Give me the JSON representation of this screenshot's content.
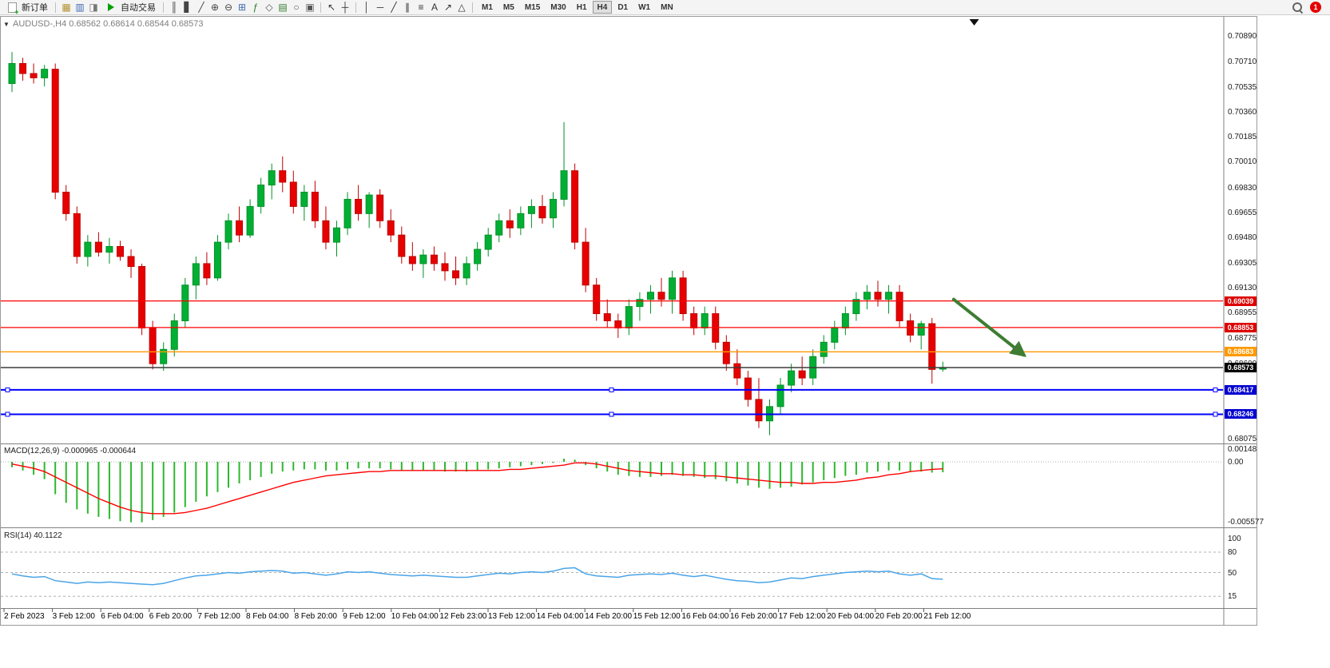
{
  "toolbar": {
    "new_order_label": "新订单",
    "auto_trading_label": "自动交易",
    "notification_count": "1",
    "timeframes": [
      "M1",
      "M5",
      "M15",
      "M30",
      "H1",
      "H4",
      "D1",
      "W1",
      "MN"
    ],
    "active_timeframe": "H4",
    "icons_a": [
      {
        "name": "profiles-icon",
        "glyph": "▦",
        "color": "#b3902d"
      },
      {
        "name": "market-watch-icon",
        "glyph": "▥",
        "color": "#3f69b3"
      },
      {
        "name": "navigator-icon",
        "glyph": "◨",
        "color": "#777777"
      }
    ],
    "icons_b": [
      {
        "name": "bar-chart-icon",
        "glyph": "║",
        "color": "#444444"
      },
      {
        "name": "candlestick-chart-icon",
        "glyph": "▋",
        "color": "#444444"
      },
      {
        "name": "line-chart-icon",
        "glyph": "╱",
        "color": "#444444"
      },
      {
        "name": "zoom-in-icon",
        "glyph": "⊕",
        "color": "#444444"
      },
      {
        "name": "zoom-out-icon",
        "glyph": "⊖",
        "color": "#444444"
      },
      {
        "name": "tile-windows-icon",
        "glyph": "⊞",
        "color": "#3f69b3"
      },
      {
        "name": "indicators-icon",
        "glyph": "ƒ",
        "color": "#2e7d2e"
      },
      {
        "name": "objects-list-icon",
        "glyph": "◇",
        "color": "#555555"
      },
      {
        "name": "new-chart-icon",
        "glyph": "▤",
        "color": "#2e7d2e"
      },
      {
        "name": "period-clock-icon",
        "glyph": "○",
        "color": "#555555"
      },
      {
        "name": "screenshot-icon",
        "glyph": "▣",
        "color": "#555555"
      }
    ],
    "icons_c": [
      {
        "name": "cursor-icon",
        "glyph": "↖",
        "color": "#333333"
      },
      {
        "name": "crosshair-icon",
        "glyph": "┼",
        "color": "#333333"
      }
    ],
    "icons_d": [
      {
        "name": "vertical-line-icon",
        "glyph": "│",
        "color": "#333333"
      },
      {
        "name": "horizontal-line-icon",
        "glyph": "─",
        "color": "#333333"
      },
      {
        "name": "trendline-icon",
        "glyph": "╱",
        "color": "#333333"
      },
      {
        "name": "equidistant-channel-icon",
        "glyph": "∥",
        "color": "#333333"
      },
      {
        "name": "fibonacci-icon",
        "glyph": "≡",
        "color": "#333333"
      },
      {
        "name": "text-icon",
        "glyph": "A",
        "color": "#333333"
      },
      {
        "name": "arrow-objects-icon",
        "glyph": "↗",
        "color": "#333333"
      },
      {
        "name": "shapes-icon",
        "glyph": "△",
        "color": "#333333"
      }
    ]
  },
  "chart": {
    "collapse_glyph": "▼",
    "header": "AUDUSD-,H4  0.68562 0.68614 0.68544 0.68573",
    "symbol": "AUDUSD-",
    "timeframe": "H4",
    "open": "0.68562",
    "high": "0.68614",
    "low": "0.68544",
    "close": "0.68573"
  },
  "price_axis": {
    "ticks": [
      "0.70890",
      "0.70710",
      "0.70535",
      "0.70360",
      "0.70185",
      "0.70010",
      "0.69830",
      "0.69655",
      "0.69480",
      "0.69305",
      "0.69130",
      "0.68955",
      "0.68775",
      "0.68600",
      "0.68075"
    ]
  },
  "levels": [
    {
      "price": 0.69039,
      "display": "0.69039",
      "line_color": "#ff0000",
      "badge_color": "#dd0000",
      "width": 1.3,
      "handles": false
    },
    {
      "price": 0.68853,
      "display": "0.68853",
      "line_color": "#ff0000",
      "badge_color": "#dd0000",
      "width": 1.3,
      "handles": false
    },
    {
      "price": 0.68683,
      "display": "0.68683",
      "line_color": "#ff9900",
      "badge_color": "#ff9900",
      "width": 1.3,
      "handles": false
    },
    {
      "price": 0.68573,
      "display": "0.68573",
      "line_color": "#3c3c3c",
      "badge_color": "#000000",
      "width": 1.4,
      "handles": false
    },
    {
      "price": 0.68417,
      "display": "0.68417",
      "line_color": "#0000ff",
      "badge_color": "#0000d0",
      "width": 2,
      "handles": true
    },
    {
      "price": 0.68246,
      "display": "0.68246",
      "line_color": "#0000ff",
      "badge_color": "#0000d0",
      "width": 2,
      "handles": true
    }
  ],
  "annotation_arrow": {
    "color": "#3e7d33",
    "from_bar": 87,
    "from_price": 0.6905,
    "to_bar": 93.5,
    "to_price": 0.6866,
    "stroke_width": 4
  },
  "top_marker": {
    "bar": 88.9,
    "color": "#111111"
  },
  "indicators": {
    "macd": {
      "label": "MACD(12,26,9) -0.000965 -0.000644",
      "axis_labels": [
        "0.00148",
        "0.00",
        "-0.005577"
      ]
    },
    "rsi": {
      "label": "RSI(14) 40.1122",
      "axis_labels": [
        "100",
        "80",
        "50",
        "15"
      ]
    }
  },
  "chart_data": {
    "type": "candlestick",
    "symbol": "AUDUSD",
    "timeframe": "H4",
    "ylim": [
      0.68075,
      0.7089
    ],
    "colors": {
      "up": "#00af33",
      "up_stroke": "#009127",
      "down": "#e60000",
      "down_stroke": "#c00000",
      "macd_bar": "#2db82d",
      "macd_signal": "#ff0000",
      "rsi": "#4aa4e8"
    },
    "x_labels": [
      "2 Feb 2023",
      "3 Feb 12:00",
      "6 Feb 04:00",
      "6 Feb 20:00",
      "7 Feb 12:00",
      "8 Feb 04:00",
      "8 Feb 20:00",
      "9 Feb 12:00",
      "10 Feb 04:00",
      "12 Feb 23:00",
      "13 Feb 12:00",
      "14 Feb 04:00",
      "14 Feb 20:00",
      "15 Feb 12:00",
      "16 Feb 04:00",
      "16 Feb 20:00",
      "17 Feb 12:00",
      "20 Feb 04:00",
      "20 Feb 20:00",
      "21 Feb 12:00"
    ],
    "ohlc": [
      [
        0.7056,
        0.7078,
        0.705,
        0.707
      ],
      [
        0.707,
        0.7074,
        0.7058,
        0.7063
      ],
      [
        0.7063,
        0.707,
        0.7056,
        0.706
      ],
      [
        0.706,
        0.7069,
        0.7054,
        0.7066
      ],
      [
        0.7066,
        0.707,
        0.6975,
        0.698
      ],
      [
        0.698,
        0.6985,
        0.696,
        0.6965
      ],
      [
        0.6965,
        0.697,
        0.693,
        0.6935
      ],
      [
        0.6935,
        0.695,
        0.6928,
        0.6945
      ],
      [
        0.6945,
        0.6952,
        0.6935,
        0.6938
      ],
      [
        0.6938,
        0.6948,
        0.693,
        0.6942
      ],
      [
        0.6942,
        0.6946,
        0.6932,
        0.6935
      ],
      [
        0.6935,
        0.694,
        0.692,
        0.6928
      ],
      [
        0.6928,
        0.693,
        0.688,
        0.6885
      ],
      [
        0.6885,
        0.689,
        0.6856,
        0.686
      ],
      [
        0.686,
        0.6875,
        0.6855,
        0.687
      ],
      [
        0.687,
        0.6895,
        0.6865,
        0.689
      ],
      [
        0.689,
        0.692,
        0.6885,
        0.6915
      ],
      [
        0.6915,
        0.6935,
        0.6905,
        0.693
      ],
      [
        0.693,
        0.6938,
        0.6915,
        0.692
      ],
      [
        0.692,
        0.695,
        0.6918,
        0.6945
      ],
      [
        0.6945,
        0.6965,
        0.694,
        0.696
      ],
      [
        0.696,
        0.697,
        0.6945,
        0.695
      ],
      [
        0.695,
        0.6975,
        0.6948,
        0.697
      ],
      [
        0.697,
        0.699,
        0.6965,
        0.6985
      ],
      [
        0.6985,
        0.7,
        0.6975,
        0.6995
      ],
      [
        0.6995,
        0.7005,
        0.698,
        0.6987
      ],
      [
        0.6987,
        0.6995,
        0.6965,
        0.697
      ],
      [
        0.697,
        0.6985,
        0.696,
        0.698
      ],
      [
        0.698,
        0.6988,
        0.6955,
        0.696
      ],
      [
        0.696,
        0.697,
        0.694,
        0.6945
      ],
      [
        0.6945,
        0.696,
        0.6935,
        0.6955
      ],
      [
        0.6955,
        0.698,
        0.695,
        0.6975
      ],
      [
        0.6975,
        0.6985,
        0.696,
        0.6965
      ],
      [
        0.6965,
        0.698,
        0.6955,
        0.6978
      ],
      [
        0.6978,
        0.6982,
        0.6955,
        0.696
      ],
      [
        0.696,
        0.6968,
        0.6945,
        0.695
      ],
      [
        0.695,
        0.6956,
        0.693,
        0.6935
      ],
      [
        0.6935,
        0.6945,
        0.6925,
        0.693
      ],
      [
        0.693,
        0.694,
        0.692,
        0.6936
      ],
      [
        0.6936,
        0.6942,
        0.6925,
        0.693
      ],
      [
        0.693,
        0.6938,
        0.6918,
        0.6925
      ],
      [
        0.6925,
        0.6935,
        0.6915,
        0.692
      ],
      [
        0.692,
        0.6935,
        0.6915,
        0.693
      ],
      [
        0.693,
        0.6945,
        0.6925,
        0.694
      ],
      [
        0.694,
        0.6955,
        0.6935,
        0.695
      ],
      [
        0.695,
        0.6965,
        0.6945,
        0.696
      ],
      [
        0.696,
        0.6968,
        0.6948,
        0.6955
      ],
      [
        0.6955,
        0.697,
        0.695,
        0.6965
      ],
      [
        0.6965,
        0.6975,
        0.6955,
        0.697
      ],
      [
        0.697,
        0.6978,
        0.6958,
        0.6962
      ],
      [
        0.6962,
        0.698,
        0.6955,
        0.6975
      ],
      [
        0.6975,
        0.7029,
        0.697,
        0.6995
      ],
      [
        0.6995,
        0.7,
        0.694,
        0.6945
      ],
      [
        0.6945,
        0.6955,
        0.691,
        0.6915
      ],
      [
        0.6915,
        0.692,
        0.689,
        0.6895
      ],
      [
        0.6895,
        0.6905,
        0.6885,
        0.689
      ],
      [
        0.689,
        0.6895,
        0.6878,
        0.6885
      ],
      [
        0.6885,
        0.6905,
        0.688,
        0.69
      ],
      [
        0.69,
        0.691,
        0.689,
        0.6905
      ],
      [
        0.6905,
        0.6915,
        0.6895,
        0.691
      ],
      [
        0.691,
        0.692,
        0.69,
        0.6905
      ],
      [
        0.6905,
        0.6925,
        0.6895,
        0.692
      ],
      [
        0.692,
        0.6925,
        0.689,
        0.6895
      ],
      [
        0.6895,
        0.69,
        0.688,
        0.6885
      ],
      [
        0.6885,
        0.69,
        0.688,
        0.6895
      ],
      [
        0.6895,
        0.69,
        0.687,
        0.6875
      ],
      [
        0.6875,
        0.688,
        0.6855,
        0.686
      ],
      [
        0.686,
        0.687,
        0.6845,
        0.685
      ],
      [
        0.685,
        0.6855,
        0.683,
        0.6835
      ],
      [
        0.6835,
        0.685,
        0.6815,
        0.682
      ],
      [
        0.682,
        0.6835,
        0.681,
        0.683
      ],
      [
        0.683,
        0.685,
        0.6825,
        0.6845
      ],
      [
        0.6845,
        0.686,
        0.684,
        0.6855
      ],
      [
        0.6855,
        0.6865,
        0.6845,
        0.685
      ],
      [
        0.685,
        0.687,
        0.6845,
        0.6865
      ],
      [
        0.6865,
        0.688,
        0.686,
        0.6875
      ],
      [
        0.6875,
        0.689,
        0.687,
        0.6885
      ],
      [
        0.6885,
        0.69,
        0.688,
        0.6895
      ],
      [
        0.6895,
        0.691,
        0.689,
        0.6905
      ],
      [
        0.6905,
        0.6915,
        0.6898,
        0.691
      ],
      [
        0.691,
        0.6918,
        0.69,
        0.6905
      ],
      [
        0.6905,
        0.6915,
        0.6895,
        0.691
      ],
      [
        0.691,
        0.6915,
        0.6885,
        0.689
      ],
      [
        0.689,
        0.6895,
        0.6875,
        0.688
      ],
      [
        0.688,
        0.689,
        0.687,
        0.6888
      ],
      [
        0.6888,
        0.6892,
        0.6846,
        0.6856
      ],
      [
        0.68562,
        0.68614,
        0.68544,
        0.68573
      ]
    ],
    "macd": {
      "ylim": [
        -0.005577,
        0.00148
      ],
      "histogram": [
        -0.0005,
        -0.0008,
        -0.0012,
        -0.0016,
        -0.003,
        -0.0038,
        -0.0044,
        -0.0048,
        -0.0051,
        -0.0053,
        -0.0055,
        -0.0056,
        -0.0056,
        -0.0054,
        -0.0051,
        -0.0047,
        -0.0042,
        -0.0037,
        -0.0032,
        -0.0028,
        -0.0024,
        -0.002,
        -0.0017,
        -0.0014,
        -0.0011,
        -0.0009,
        -0.0008,
        -0.0007,
        -0.0007,
        -0.0008,
        -0.0008,
        -0.0007,
        -0.0006,
        -0.0006,
        -0.0006,
        -0.0007,
        -0.0008,
        -0.0008,
        -0.0008,
        -0.0008,
        -0.0009,
        -0.0009,
        -0.0009,
        -0.0008,
        -0.0007,
        -0.0006,
        -0.0005,
        -0.0004,
        -0.0003,
        -0.0002,
        -0.0001,
        0.0003,
        0.0002,
        -0.0003,
        -0.0006,
        -0.0009,
        -0.0012,
        -0.0013,
        -0.0014,
        -0.0014,
        -0.0013,
        -0.0012,
        -0.0013,
        -0.0014,
        -0.0015,
        -0.0016,
        -0.0018,
        -0.002,
        -0.0022,
        -0.0024,
        -0.0025,
        -0.0024,
        -0.0023,
        -0.0021,
        -0.0019,
        -0.0017,
        -0.0015,
        -0.0013,
        -0.0012,
        -0.001,
        -0.0009,
        -0.0008,
        -0.0008,
        -0.0009,
        -0.0009,
        -0.001,
        -0.000965
      ],
      "signal": [
        -0.0002,
        -0.0004,
        -0.0006,
        -0.0009,
        -0.0014,
        -0.0019,
        -0.0024,
        -0.0029,
        -0.0034,
        -0.0038,
        -0.0042,
        -0.0045,
        -0.0047,
        -0.0048,
        -0.0048,
        -0.0048,
        -0.0047,
        -0.0045,
        -0.0043,
        -0.004,
        -0.0037,
        -0.0034,
        -0.0031,
        -0.0028,
        -0.0025,
        -0.0022,
        -0.0019,
        -0.0017,
        -0.0015,
        -0.0013,
        -0.0012,
        -0.0011,
        -0.001,
        -0.0009,
        -0.0009,
        -0.0008,
        -0.0008,
        -0.0008,
        -0.0008,
        -0.0008,
        -0.0008,
        -0.0008,
        -0.0008,
        -0.0008,
        -0.0008,
        -0.0008,
        -0.0007,
        -0.0007,
        -0.0006,
        -0.0005,
        -0.0004,
        -0.0003,
        -0.0001,
        -0.0001,
        -0.0002,
        -0.0004,
        -0.0006,
        -0.0008,
        -0.0009,
        -0.001,
        -0.0011,
        -0.0011,
        -0.0012,
        -0.0012,
        -0.0013,
        -0.0013,
        -0.0014,
        -0.0015,
        -0.0016,
        -0.0017,
        -0.0018,
        -0.0019,
        -0.0019,
        -0.002,
        -0.002,
        -0.0019,
        -0.0019,
        -0.0018,
        -0.0017,
        -0.0015,
        -0.0014,
        -0.0012,
        -0.0011,
        -0.0009,
        -0.0008,
        -0.0007,
        -0.000644
      ],
      "current_values": [
        -0.000965,
        -0.000644
      ]
    },
    "rsi": {
      "ylim": [
        0,
        100
      ],
      "levels": [
        80,
        50,
        15
      ],
      "current": 40.1122,
      "values": [
        48,
        45,
        43,
        44,
        38,
        36,
        34,
        36,
        35,
        36,
        35,
        34,
        33,
        32,
        34,
        38,
        42,
        45,
        46,
        48,
        50,
        49,
        51,
        52,
        53,
        52,
        49,
        50,
        48,
        46,
        48,
        51,
        50,
        51,
        49,
        47,
        46,
        45,
        46,
        45,
        44,
        43,
        43,
        45,
        47,
        49,
        48,
        50,
        51,
        50,
        52,
        56,
        57,
        48,
        45,
        44,
        43,
        46,
        47,
        48,
        47,
        49,
        46,
        44,
        46,
        43,
        40,
        38,
        37,
        35,
        36,
        39,
        42,
        41,
        44,
        46,
        48,
        50,
        51,
        52,
        51,
        52,
        48,
        46,
        48,
        41,
        40.11
      ]
    }
  }
}
